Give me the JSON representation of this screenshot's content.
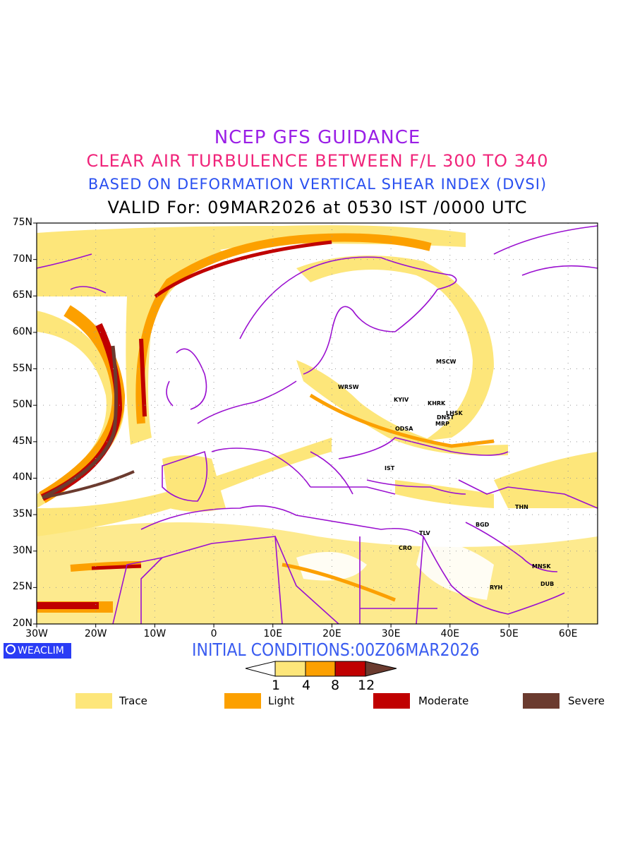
{
  "titles": {
    "line1": "NCEP GFS GUIDANCE",
    "line2": "CLEAR AIR TURBULENCE BETWEEN F/L 300 TO 340",
    "line3": "BASED ON DEFORMATION VERTICAL SHEAR INDEX (DVSI)",
    "line4": "VALID For: 09MAR2026 at 0530 IST /0000 UTC"
  },
  "axes": {
    "lat_labels": [
      "75N",
      "70N",
      "65N",
      "60N",
      "55N",
      "50N",
      "45N",
      "40N",
      "35N",
      "30N",
      "25N",
      "20N"
    ],
    "lon_labels": [
      "30W",
      "20W",
      "10W",
      "0",
      "10E",
      "20E",
      "30E",
      "40E",
      "50E",
      "60E"
    ]
  },
  "cities": [
    "MSCW",
    "WRSW",
    "KYIV",
    "KHRK",
    "LHSK",
    "DNST",
    "MRP",
    "ODSA",
    "IST",
    "THN",
    "BGD",
    "TLV",
    "CRO",
    "MNSK",
    "DUB",
    "RYH"
  ],
  "brand": "WEACLIM",
  "initial_conditions": "INITIAL CONDITIONS:00Z06MAR2026",
  "colorbar": {
    "ticks": [
      "1",
      "4",
      "8",
      "12"
    ],
    "colors": [
      "#fde67a",
      "#fca000",
      "#c00000",
      "#6b3b2f"
    ]
  },
  "legend": [
    {
      "label": "Trace",
      "color": "#fde67a"
    },
    {
      "label": "Light",
      "color": "#fca000"
    },
    {
      "label": "Moderate",
      "color": "#c00000"
    },
    {
      "label": "Severe",
      "color": "#6b3b2f"
    }
  ],
  "colors": {
    "border": "#9a10d0",
    "title1": "#9a1ee6",
    "title2": "#f0247a",
    "title3": "#2a50f0"
  }
}
